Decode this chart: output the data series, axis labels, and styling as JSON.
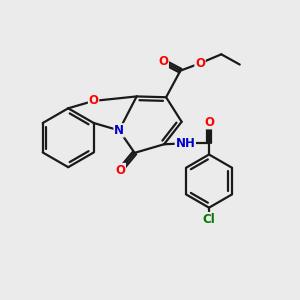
{
  "background_color": "#ebebeb",
  "bond_color": "#1a1a1a",
  "atom_colors": {
    "O": "#ff0000",
    "N": "#0000cc",
    "Cl": "#007700",
    "C": "#1a1a1a",
    "H": "#444444"
  },
  "figsize": [
    3.0,
    3.0
  ],
  "dpi": 100
}
